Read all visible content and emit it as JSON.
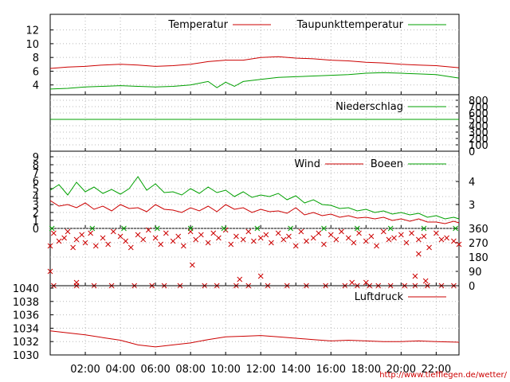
{
  "colors": {
    "red": "#cc0000",
    "green": "#00a000",
    "grid": "#b8b8b8",
    "axis": "#000000",
    "footer": "#cc0000"
  },
  "footer_url": "http://www.tiefflegen.de/wetter/",
  "x_axis": {
    "ticks": [
      "02:00",
      "04:00",
      "06:00",
      "08:00",
      "10:00",
      "12:00",
      "14:00",
      "16:00",
      "18:00",
      "20:00",
      "22:00"
    ],
    "tick_hours": [
      2,
      4,
      6,
      8,
      10,
      12,
      14,
      16,
      18,
      20,
      22
    ],
    "range_hours": [
      0,
      23.3
    ]
  },
  "chart_data": [
    {
      "type": "line",
      "panel": "temperature",
      "ylim": [
        2,
        13
      ],
      "yticks": [
        "4",
        "6",
        "8",
        "10",
        "12"
      ],
      "ytick_values": [
        4,
        6,
        8,
        10,
        12
      ],
      "series": [
        {
          "name": "Temperatur",
          "color": "red",
          "x": [
            0,
            1,
            2,
            3,
            4,
            5,
            6,
            7,
            8,
            9,
            10,
            11,
            12,
            13,
            14,
            15,
            16,
            17,
            18,
            19,
            20,
            21,
            22,
            23.3
          ],
          "y": [
            6.4,
            6.6,
            6.7,
            6.9,
            7.0,
            6.9,
            6.7,
            6.8,
            7.0,
            7.4,
            7.6,
            7.6,
            8.0,
            8.1,
            7.9,
            7.8,
            7.6,
            7.5,
            7.3,
            7.2,
            7.0,
            6.9,
            6.8,
            6.5
          ]
        },
        {
          "name": "Taupunkttemperatur",
          "color": "green",
          "x": [
            0,
            1,
            2,
            3,
            4,
            5,
            6,
            7,
            8,
            9,
            9.5,
            10,
            10.5,
            11,
            12,
            13,
            14,
            15,
            16,
            17,
            18,
            19,
            20,
            21,
            22,
            23.3
          ],
          "y": [
            3.4,
            3.5,
            3.7,
            3.8,
            3.9,
            3.8,
            3.7,
            3.8,
            4.0,
            4.5,
            3.6,
            4.4,
            3.8,
            4.5,
            4.8,
            5.1,
            5.2,
            5.3,
            5.4,
            5.5,
            5.7,
            5.8,
            5.7,
            5.6,
            5.5,
            5.0
          ]
        }
      ]
    },
    {
      "type": "line",
      "panel": "precipitation",
      "ylim": [
        0,
        800
      ],
      "yticks_right": [
        "0",
        "100",
        "200",
        "300",
        "400",
        "500",
        "600",
        "700",
        "800"
      ],
      "ytick_values": [
        0,
        100,
        200,
        300,
        400,
        500,
        600,
        700,
        800
      ],
      "series": [
        {
          "name": "Niederschlag",
          "color": "green",
          "x": [
            0,
            23.3
          ],
          "y": [
            500,
            500
          ]
        }
      ]
    },
    {
      "type": "line",
      "panel": "wind",
      "ylim": [
        0,
        9
      ],
      "yticks": [
        "0",
        "1",
        "2",
        "3",
        "4",
        "5",
        "6",
        "7",
        "8",
        "9"
      ],
      "ytick_values": [
        0,
        1,
        2,
        3,
        4,
        5,
        6,
        7,
        8,
        9
      ],
      "yticks_right": [
        "3",
        "4"
      ],
      "ytick_right_values": [
        3.0,
        5.9
      ],
      "series": [
        {
          "name": "Wind",
          "color": "red",
          "x": [
            0,
            0.5,
            1,
            1.5,
            2,
            2.5,
            3,
            3.5,
            4,
            4.5,
            5,
            5.5,
            6,
            6.5,
            7,
            7.5,
            8,
            8.5,
            9,
            9.5,
            10,
            10.5,
            11,
            11.5,
            12,
            12.5,
            13,
            13.5,
            14,
            14.5,
            15,
            15.5,
            16,
            16.5,
            17,
            17.5,
            18,
            18.5,
            19,
            19.5,
            20,
            20.5,
            21,
            21.5,
            22,
            22.5,
            23,
            23.3
          ],
          "y": [
            3.5,
            2.8,
            3.0,
            2.6,
            3.2,
            2.4,
            2.8,
            2.2,
            3.0,
            2.5,
            2.6,
            2.1,
            3.0,
            2.4,
            2.3,
            2.0,
            2.6,
            2.2,
            2.8,
            2.1,
            3.0,
            2.4,
            2.6,
            2.0,
            2.4,
            2.1,
            2.2,
            1.9,
            2.6,
            1.7,
            2.0,
            1.6,
            1.8,
            1.4,
            1.6,
            1.3,
            1.4,
            1.2,
            1.4,
            1.0,
            1.2,
            0.9,
            1.2,
            0.8,
            0.8,
            0.6,
            0.9,
            0.7
          ]
        },
        {
          "name": "Boeen",
          "color": "green",
          "x": [
            0,
            0.5,
            1,
            1.5,
            2,
            2.5,
            3,
            3.5,
            4,
            4.5,
            5,
            5.5,
            6,
            6.5,
            7,
            7.5,
            8,
            8.5,
            9,
            9.5,
            10,
            10.5,
            11,
            11.5,
            12,
            12.5,
            13,
            13.5,
            14,
            14.5,
            15,
            15.5,
            16,
            16.5,
            17,
            17.5,
            18,
            18.5,
            19,
            19.5,
            20,
            20.5,
            21,
            21.5,
            22,
            22.5,
            23,
            23.3
          ],
          "y": [
            4.8,
            5.5,
            4.2,
            5.8,
            4.6,
            5.2,
            4.4,
            4.9,
            4.3,
            5.0,
            6.5,
            4.8,
            5.6,
            4.5,
            4.6,
            4.2,
            5.0,
            4.4,
            5.2,
            4.5,
            4.8,
            4.0,
            4.6,
            3.9,
            4.2,
            4.0,
            4.4,
            3.6,
            4.1,
            3.2,
            3.6,
            3.0,
            2.9,
            2.5,
            2.6,
            2.2,
            2.4,
            2.0,
            2.2,
            1.8,
            2.0,
            1.7,
            1.9,
            1.4,
            1.6,
            1.2,
            1.4,
            1.2
          ]
        }
      ]
    },
    {
      "type": "scatter",
      "panel": "wind_direction",
      "ylim": [
        0,
        360
      ],
      "yticks_right": [
        "0",
        "90",
        "180",
        "270",
        "360"
      ],
      "ytick_values": [
        0,
        90,
        180,
        270,
        360
      ],
      "series": [
        {
          "color": "red",
          "marker": "x",
          "x": [
            0,
            0.2,
            0.5,
            0.8,
            1,
            1.3,
            1.5,
            1.8,
            2,
            2.3,
            2.6,
            3,
            3.3,
            3.6,
            4,
            4.3,
            4.6,
            5,
            5.3,
            5.6,
            6,
            6.3,
            6.6,
            7,
            7.3,
            7.6,
            8,
            8.3,
            8.6,
            9,
            9.3,
            9.6,
            10,
            10.3,
            10.6,
            11,
            11.3,
            11.6,
            12,
            12.3,
            12.6,
            13,
            13.3,
            13.6,
            14,
            14.3,
            14.6,
            15,
            15.3,
            15.6,
            16,
            16.3,
            16.6,
            17,
            17.3,
            17.6,
            18,
            18.3,
            18.6,
            19,
            19.3,
            19.6,
            20,
            20.3,
            20.6,
            21,
            21.3,
            21.6,
            22,
            22.3,
            22.6,
            23,
            23.3
          ],
          "y": [
            250,
            330,
            280,
            300,
            340,
            240,
            290,
            320,
            270,
            330,
            250,
            300,
            260,
            340,
            310,
            280,
            240,
            320,
            290,
            350,
            300,
            260,
            330,
            280,
            310,
            250,
            340,
            290,
            320,
            270,
            330,
            300,
            350,
            260,
            310,
            290,
            340,
            280,
            300,
            320,
            270,
            330,
            290,
            310,
            250,
            340,
            280,
            300,
            330,
            260,
            320,
            290,
            340,
            300,
            270,
            330,
            280,
            310,
            250,
            340,
            290,
            300,
            320,
            270,
            330,
            290,
            310,
            240,
            330,
            290,
            300,
            280,
            260
          ]
        },
        {
          "color": "red",
          "marker": "x",
          "x": [
            0.2,
            1.5,
            2.5,
            3.5,
            4.8,
            5.8,
            6.5,
            7.4,
            8.8,
            9.5,
            10.6,
            11.3,
            12.4,
            13.5,
            14.6,
            15.7,
            16.8,
            17.5,
            18.2,
            18.7,
            19.4,
            20.2,
            20.8,
            21.5,
            22.3,
            23
          ],
          "y": [
            0,
            0,
            0,
            0,
            0,
            0,
            0,
            0,
            0,
            0,
            0,
            0,
            0,
            0,
            0,
            0,
            0,
            0,
            0,
            0,
            0,
            0,
            0,
            0,
            0,
            0
          ]
        },
        {
          "color": "red",
          "marker": "x",
          "x": [
            0,
            1.5,
            8.1,
            10.8,
            12.0,
            17.2,
            18.0,
            20.8,
            21.4,
            21.0
          ],
          "y": [
            90,
            20,
            130,
            40,
            60,
            20,
            20,
            60,
            30,
            200
          ]
        },
        {
          "color": "green",
          "marker": "x",
          "x": [
            0.1,
            2.4,
            4.2,
            6.1,
            8.0,
            9.9,
            11.8,
            13.7,
            15.6,
            17.5,
            19.4,
            21.3,
            23.1
          ],
          "y": [
            360,
            360,
            360,
            360,
            360,
            360,
            360,
            360,
            360,
            360,
            360,
            360,
            360
          ]
        }
      ]
    },
    {
      "type": "line",
      "panel": "pressure",
      "ylim": [
        1030,
        1040
      ],
      "yticks": [
        "1030",
        "1032",
        "1034",
        "1036",
        "1038",
        "1040"
      ],
      "ytick_values": [
        1030,
        1032,
        1034,
        1036,
        1038,
        1040
      ],
      "series": [
        {
          "name": "Luftdruck",
          "color": "red",
          "x": [
            0,
            1,
            2,
            3,
            4,
            5,
            6,
            7,
            8,
            9,
            10,
            11,
            12,
            13,
            14,
            15,
            16,
            17,
            18,
            19,
            20,
            21,
            22,
            23.3
          ],
          "y": [
            1033.6,
            1033.3,
            1033.0,
            1032.6,
            1032.2,
            1031.5,
            1031.2,
            1031.5,
            1031.8,
            1032.3,
            1032.7,
            1032.8,
            1032.9,
            1032.7,
            1032.5,
            1032.3,
            1032.1,
            1032.2,
            1032.1,
            1032.0,
            1032.0,
            1032.1,
            1032.0,
            1031.9
          ]
        }
      ]
    }
  ]
}
